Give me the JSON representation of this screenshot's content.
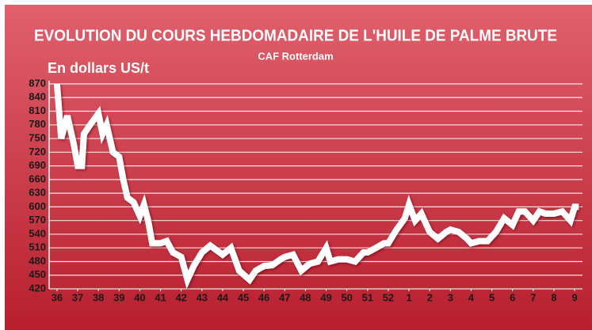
{
  "chart_data": {
    "type": "line",
    "title": "EVOLUTION DU COURS HEBDOMADAIRE DE L'HUILE DE PALME BRUTE",
    "subtitle": "CAF Rotterdam",
    "y_label": "En dollars US/t",
    "grid": true,
    "xlim": [
      -0.38,
      25.38
    ],
    "ylim": [
      420,
      870
    ],
    "yticks": [
      420,
      450,
      480,
      510,
      540,
      570,
      600,
      630,
      660,
      690,
      720,
      750,
      780,
      810,
      840,
      870
    ],
    "xticks": [
      {
        "value": 0,
        "label": "36"
      },
      {
        "value": 1,
        "label": "37"
      },
      {
        "value": 2,
        "label": "38"
      },
      {
        "value": 3,
        "label": "39"
      },
      {
        "value": 4,
        "label": "40"
      },
      {
        "value": 5,
        "label": "41"
      },
      {
        "value": 6,
        "label": "42"
      },
      {
        "value": 7,
        "label": "43"
      },
      {
        "value": 8,
        "label": "44"
      },
      {
        "value": 9,
        "label": "45"
      },
      {
        "value": 10,
        "label": "46"
      },
      {
        "value": 11,
        "label": "47"
      },
      {
        "value": 12,
        "label": "48"
      },
      {
        "value": 13,
        "label": "49"
      },
      {
        "value": 14,
        "label": "50"
      },
      {
        "value": 15,
        "label": "51"
      },
      {
        "value": 16,
        "label": "52"
      },
      {
        "value": 17,
        "label": "1"
      },
      {
        "value": 18,
        "label": "2"
      },
      {
        "value": 19,
        "label": "3"
      },
      {
        "value": 20,
        "label": "4"
      },
      {
        "value": 21,
        "label": "5"
      },
      {
        "value": 22,
        "label": "6"
      },
      {
        "value": 23,
        "label": "7"
      },
      {
        "value": 24,
        "label": "8"
      },
      {
        "value": 25,
        "label": "9"
      }
    ],
    "x": [
      0,
      0.2,
      0.5,
      0.8,
      1.0,
      1.2,
      1.3,
      1.6,
      2.0,
      2.2,
      2.4,
      2.7,
      3.0,
      3.2,
      3.4,
      3.7,
      4.0,
      4.2,
      4.4,
      4.6,
      5.0,
      5.3,
      5.6,
      6.0,
      6.3,
      6.6,
      7.0,
      7.4,
      8.0,
      8.4,
      8.8,
      9.3,
      9.6,
      10.0,
      10.4,
      10.8,
      11.0,
      11.4,
      11.8,
      12.2,
      12.6,
      13.0,
      13.2,
      13.6,
      14.0,
      14.4,
      14.8,
      15.0,
      15.4,
      15.8,
      16.0,
      16.4,
      16.8,
      17.0,
      17.3,
      17.6,
      18.0,
      18.4,
      18.8,
      19.0,
      19.4,
      19.8,
      20.0,
      20.4,
      20.8,
      21.2,
      21.6,
      22.0,
      22.3,
      22.6,
      23.0,
      23.3,
      23.6,
      24.0,
      24.4,
      24.8,
      25.0,
      25.2
    ],
    "series": [
      {
        "color": "#ffffff",
        "values": [
          870,
          750,
          800,
          740,
          690,
          690,
          760,
          780,
          805,
          760,
          780,
          720,
          710,
          660,
          620,
          610,
          580,
          605,
          570,
          520,
          520,
          525,
          500,
          490,
          440,
          470,
          500,
          515,
          495,
          510,
          460,
          440,
          460,
          470,
          472,
          485,
          490,
          495,
          460,
          475,
          480,
          510,
          480,
          485,
          485,
          480,
          500,
          500,
          510,
          520,
          520,
          550,
          575,
          605,
          570,
          585,
          545,
          530,
          545,
          550,
          545,
          530,
          520,
          525,
          525,
          545,
          575,
          560,
          590,
          590,
          570,
          590,
          585,
          585,
          590,
          570,
          600,
          600
        ]
      }
    ]
  }
}
